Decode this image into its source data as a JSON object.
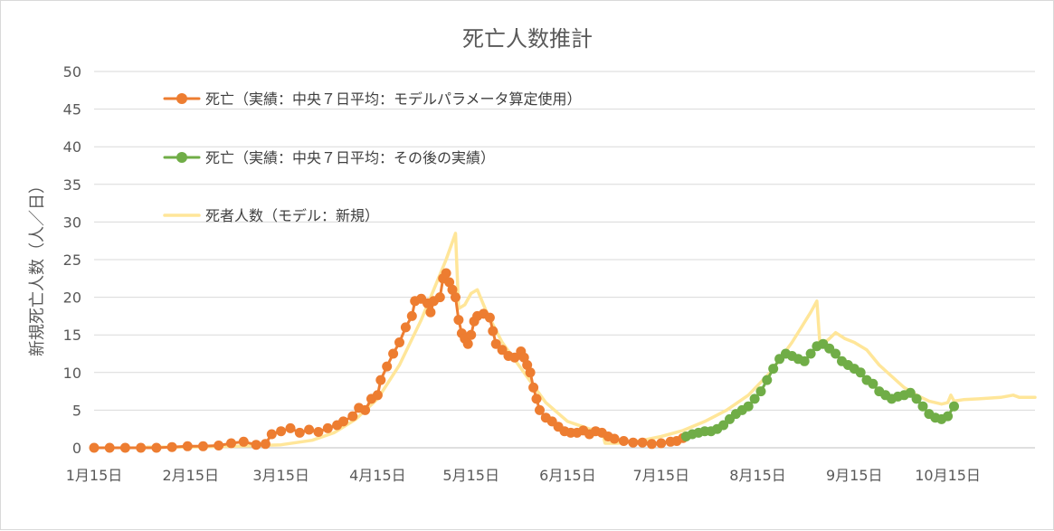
{
  "chart_data": {
    "type": "line",
    "title": "死亡人数推計",
    "ylabel": "新規死亡人数（人／日）",
    "xlabel": "",
    "ylim": [
      0,
      50
    ],
    "yticks": [
      0,
      5,
      10,
      15,
      20,
      25,
      30,
      35,
      40,
      45,
      50
    ],
    "xlim": [
      "2020-01-15",
      "2020-11-12"
    ],
    "xticks": [
      {
        "date": "2020-01-15",
        "label": "1月15日"
      },
      {
        "date": "2020-02-15",
        "label": "2月15日"
      },
      {
        "date": "2020-03-15",
        "label": "3月15日"
      },
      {
        "date": "2020-04-15",
        "label": "4月15日"
      },
      {
        "date": "2020-05-15",
        "label": "5月15日"
      },
      {
        "date": "2020-06-15",
        "label": "6月15日"
      },
      {
        "date": "2020-07-15",
        "label": "7月15日"
      },
      {
        "date": "2020-08-15",
        "label": "8月15日"
      },
      {
        "date": "2020-09-15",
        "label": "9月15日"
      },
      {
        "date": "2020-10-15",
        "label": "10月15日"
      }
    ],
    "grid": true,
    "legend_position": "top-left",
    "series": [
      {
        "name": "死亡（実績：中央７日平均：モデルパラメータ算定使用）",
        "color": "#ED7D31",
        "style": "line-markers",
        "points": [
          [
            "2020-01-15",
            0
          ],
          [
            "2020-01-20",
            0
          ],
          [
            "2020-01-25",
            0
          ],
          [
            "2020-01-30",
            0
          ],
          [
            "2020-02-04",
            0
          ],
          [
            "2020-02-09",
            0.1
          ],
          [
            "2020-02-14",
            0.2
          ],
          [
            "2020-02-19",
            0.2
          ],
          [
            "2020-02-24",
            0.3
          ],
          [
            "2020-02-28",
            0.6
          ],
          [
            "2020-03-03",
            0.8
          ],
          [
            "2020-03-07",
            0.4
          ],
          [
            "2020-03-10",
            0.5
          ],
          [
            "2020-03-12",
            1.8
          ],
          [
            "2020-03-15",
            2.2
          ],
          [
            "2020-03-18",
            2.6
          ],
          [
            "2020-03-21",
            2.0
          ],
          [
            "2020-03-24",
            2.4
          ],
          [
            "2020-03-27",
            2.1
          ],
          [
            "2020-03-30",
            2.6
          ],
          [
            "2020-04-02",
            3.0
          ],
          [
            "2020-04-04",
            3.5
          ],
          [
            "2020-04-07",
            4.2
          ],
          [
            "2020-04-09",
            5.3
          ],
          [
            "2020-04-11",
            5.0
          ],
          [
            "2020-04-13",
            6.5
          ],
          [
            "2020-04-15",
            7.0
          ],
          [
            "2020-04-16",
            9.0
          ],
          [
            "2020-04-18",
            10.8
          ],
          [
            "2020-04-20",
            12.5
          ],
          [
            "2020-04-22",
            14.0
          ],
          [
            "2020-04-24",
            16.0
          ],
          [
            "2020-04-26",
            17.5
          ],
          [
            "2020-04-27",
            19.5
          ],
          [
            "2020-04-29",
            19.8
          ],
          [
            "2020-05-01",
            19.2
          ],
          [
            "2020-05-02",
            18.0
          ],
          [
            "2020-05-03",
            19.5
          ],
          [
            "2020-05-05",
            20.0
          ],
          [
            "2020-05-06",
            22.5
          ],
          [
            "2020-05-07",
            23.2
          ],
          [
            "2020-05-08",
            22.0
          ],
          [
            "2020-05-09",
            21.0
          ],
          [
            "2020-05-10",
            20.0
          ],
          [
            "2020-05-11",
            17.0
          ],
          [
            "2020-05-12",
            15.2
          ],
          [
            "2020-05-13",
            14.5
          ],
          [
            "2020-05-14",
            13.8
          ],
          [
            "2020-05-15",
            15.0
          ],
          [
            "2020-05-16",
            16.8
          ],
          [
            "2020-05-17",
            17.5
          ],
          [
            "2020-05-19",
            17.8
          ],
          [
            "2020-05-21",
            17.3
          ],
          [
            "2020-05-22",
            15.5
          ],
          [
            "2020-05-23",
            13.8
          ],
          [
            "2020-05-25",
            13.0
          ],
          [
            "2020-05-27",
            12.2
          ],
          [
            "2020-05-29",
            12.0
          ],
          [
            "2020-05-31",
            12.8
          ],
          [
            "2020-06-01",
            12.0
          ],
          [
            "2020-06-02",
            11.0
          ],
          [
            "2020-06-03",
            10.0
          ],
          [
            "2020-06-04",
            8.0
          ],
          [
            "2020-06-05",
            6.5
          ],
          [
            "2020-06-06",
            5.0
          ],
          [
            "2020-06-08",
            4.0
          ],
          [
            "2020-06-10",
            3.5
          ],
          [
            "2020-06-12",
            2.8
          ],
          [
            "2020-06-14",
            2.2
          ],
          [
            "2020-06-16",
            2.0
          ],
          [
            "2020-06-18",
            2.0
          ],
          [
            "2020-06-20",
            2.3
          ],
          [
            "2020-06-22",
            1.8
          ],
          [
            "2020-06-24",
            2.2
          ],
          [
            "2020-06-26",
            2.0
          ],
          [
            "2020-06-28",
            1.5
          ],
          [
            "2020-06-30",
            1.2
          ],
          [
            "2020-07-03",
            0.9
          ],
          [
            "2020-07-06",
            0.7
          ],
          [
            "2020-07-09",
            0.7
          ],
          [
            "2020-07-12",
            0.5
          ],
          [
            "2020-07-15",
            0.6
          ],
          [
            "2020-07-18",
            0.8
          ],
          [
            "2020-07-20",
            0.9
          ],
          [
            "2020-07-22",
            1.3
          ]
        ]
      },
      {
        "name": "死亡（実績：中央７日平均：その後の実績）",
        "color": "#70AD47",
        "style": "line-markers",
        "points": [
          [
            "2020-07-23",
            1.5
          ],
          [
            "2020-07-25",
            1.8
          ],
          [
            "2020-07-27",
            2.0
          ],
          [
            "2020-07-29",
            2.2
          ],
          [
            "2020-07-31",
            2.2
          ],
          [
            "2020-08-02",
            2.5
          ],
          [
            "2020-08-04",
            3.0
          ],
          [
            "2020-08-06",
            3.8
          ],
          [
            "2020-08-08",
            4.5
          ],
          [
            "2020-08-10",
            5.0
          ],
          [
            "2020-08-12",
            5.5
          ],
          [
            "2020-08-14",
            6.5
          ],
          [
            "2020-08-16",
            7.5
          ],
          [
            "2020-08-18",
            9.0
          ],
          [
            "2020-08-20",
            10.5
          ],
          [
            "2020-08-22",
            11.8
          ],
          [
            "2020-08-24",
            12.5
          ],
          [
            "2020-08-26",
            12.2
          ],
          [
            "2020-08-28",
            11.8
          ],
          [
            "2020-08-30",
            11.5
          ],
          [
            "2020-09-01",
            12.5
          ],
          [
            "2020-09-03",
            13.5
          ],
          [
            "2020-09-05",
            13.8
          ],
          [
            "2020-09-07",
            13.2
          ],
          [
            "2020-09-09",
            12.5
          ],
          [
            "2020-09-11",
            11.5
          ],
          [
            "2020-09-13",
            11.0
          ],
          [
            "2020-09-15",
            10.5
          ],
          [
            "2020-09-17",
            10.0
          ],
          [
            "2020-09-19",
            9.0
          ],
          [
            "2020-09-21",
            8.5
          ],
          [
            "2020-09-23",
            7.5
          ],
          [
            "2020-09-25",
            7.0
          ],
          [
            "2020-09-27",
            6.5
          ],
          [
            "2020-09-29",
            6.8
          ],
          [
            "2020-10-01",
            7.0
          ],
          [
            "2020-10-03",
            7.3
          ],
          [
            "2020-10-05",
            6.5
          ],
          [
            "2020-10-07",
            5.5
          ],
          [
            "2020-10-09",
            4.5
          ],
          [
            "2020-10-11",
            4.0
          ],
          [
            "2020-10-13",
            3.8
          ],
          [
            "2020-10-15",
            4.2
          ],
          [
            "2020-10-17",
            5.5
          ]
        ]
      },
      {
        "name": "死者人数（モデル：新規）",
        "color": "#FFE699",
        "style": "line",
        "points": [
          [
            "2020-02-01",
            0.1
          ],
          [
            "2020-02-15",
            0.1
          ],
          [
            "2020-03-01",
            0.2
          ],
          [
            "2020-03-15",
            0.4
          ],
          [
            "2020-03-25",
            1.0
          ],
          [
            "2020-04-01",
            2.0
          ],
          [
            "2020-04-08",
            3.8
          ],
          [
            "2020-04-15",
            6.5
          ],
          [
            "2020-04-22",
            11.0
          ],
          [
            "2020-04-29",
            17.0
          ],
          [
            "2020-05-03",
            21.0
          ],
          [
            "2020-05-07",
            25.0
          ],
          [
            "2020-05-10",
            28.5
          ],
          [
            "2020-05-11",
            18.5
          ],
          [
            "2020-05-13",
            19.0
          ],
          [
            "2020-05-15",
            20.5
          ],
          [
            "2020-05-17",
            21.0
          ],
          [
            "2020-05-20",
            18.0
          ],
          [
            "2020-05-25",
            14.0
          ],
          [
            "2020-06-01",
            10.0
          ],
          [
            "2020-06-08",
            6.0
          ],
          [
            "2020-06-15",
            3.5
          ],
          [
            "2020-06-22",
            2.5
          ],
          [
            "2020-06-26",
            2.3
          ],
          [
            "2020-06-27",
            0.6
          ],
          [
            "2020-07-01",
            0.6
          ],
          [
            "2020-07-08",
            0.9
          ],
          [
            "2020-07-15",
            1.5
          ],
          [
            "2020-07-22",
            2.3
          ],
          [
            "2020-07-29",
            3.5
          ],
          [
            "2020-08-05",
            5.0
          ],
          [
            "2020-08-12",
            7.0
          ],
          [
            "2020-08-19",
            10.0
          ],
          [
            "2020-08-26",
            14.0
          ],
          [
            "2020-09-01",
            18.0
          ],
          [
            "2020-09-03",
            19.5
          ],
          [
            "2020-09-04",
            13.5
          ],
          [
            "2020-09-07",
            14.5
          ],
          [
            "2020-09-09",
            15.3
          ],
          [
            "2020-09-12",
            14.5
          ],
          [
            "2020-09-15",
            14.0
          ],
          [
            "2020-09-19",
            13.0
          ],
          [
            "2020-09-23",
            11.0
          ],
          [
            "2020-09-27",
            9.5
          ],
          [
            "2020-10-01",
            8.0
          ],
          [
            "2020-10-05",
            7.0
          ],
          [
            "2020-10-09",
            6.2
          ],
          [
            "2020-10-13",
            5.8
          ],
          [
            "2020-10-15",
            6.0
          ],
          [
            "2020-10-16",
            7.0
          ],
          [
            "2020-10-17",
            6.2
          ],
          [
            "2020-10-20",
            6.4
          ],
          [
            "2020-10-25",
            6.5
          ],
          [
            "2020-11-01",
            6.7
          ],
          [
            "2020-11-05",
            7.0
          ],
          [
            "2020-11-07",
            6.7
          ],
          [
            "2020-11-12",
            6.7
          ]
        ]
      }
    ]
  }
}
